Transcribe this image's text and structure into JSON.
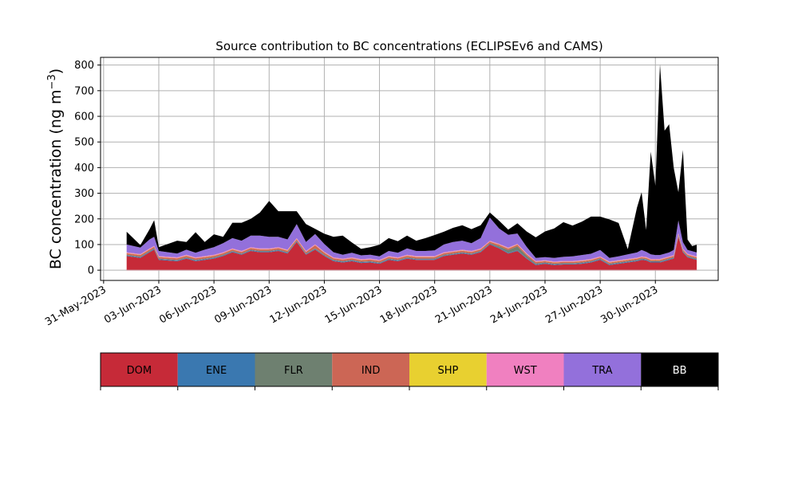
{
  "chart_data": {
    "type": "area",
    "stacked": true,
    "title": "Source contribution to BC concentrations (ECLIPSEv6 and CAMS)",
    "ylabel": "BC concentration (ng m",
    "ylabel_sup": "−3",
    "ylabel_close": ")",
    "xlabel": "",
    "ylim": [
      -40,
      830
    ],
    "yticks": [
      0,
      100,
      200,
      300,
      400,
      500,
      600,
      700,
      800
    ],
    "xlim": [
      "2023-05-30T20:00",
      "2023-07-03T10:00"
    ],
    "xticks": [
      "2023-05-31",
      "2023-06-03",
      "2023-06-06",
      "2023-06-09",
      "2023-06-12",
      "2023-06-15",
      "2023-06-18",
      "2023-06-21",
      "2023-06-24",
      "2023-06-27",
      "2023-06-30"
    ],
    "xtick_labels": [
      "31-May-2023",
      "03-Jun-2023",
      "06-Jun-2023",
      "09-Jun-2023",
      "12-Jun-2023",
      "15-Jun-2023",
      "18-Jun-2023",
      "21-Jun-2023",
      "24-Jun-2023",
      "27-Jun-2023",
      "30-Jun-2023"
    ],
    "grid": true,
    "x": [
      "2023-06-01T06:00",
      "2023-06-02T00:00",
      "2023-06-02T12:00",
      "2023-06-02T18:00",
      "2023-06-03T00:00",
      "2023-06-04T00:00",
      "2023-06-04T12:00",
      "2023-06-05T00:00",
      "2023-06-05T12:00",
      "2023-06-06T00:00",
      "2023-06-06T12:00",
      "2023-06-07T00:00",
      "2023-06-07T12:00",
      "2023-06-08T00:00",
      "2023-06-08T12:00",
      "2023-06-09T00:00",
      "2023-06-09T12:00",
      "2023-06-10T00:00",
      "2023-06-10T12:00",
      "2023-06-11T00:00",
      "2023-06-11T12:00",
      "2023-06-12T00:00",
      "2023-06-12T12:00",
      "2023-06-13T00:00",
      "2023-06-13T12:00",
      "2023-06-14T00:00",
      "2023-06-14T12:00",
      "2023-06-15T00:00",
      "2023-06-15T12:00",
      "2023-06-16T00:00",
      "2023-06-16T12:00",
      "2023-06-17T00:00",
      "2023-06-17T12:00",
      "2023-06-18T00:00",
      "2023-06-18T12:00",
      "2023-06-19T00:00",
      "2023-06-19T12:00",
      "2023-06-20T00:00",
      "2023-06-20T12:00",
      "2023-06-21T00:00",
      "2023-06-21T12:00",
      "2023-06-22T00:00",
      "2023-06-22T12:00",
      "2023-06-23T00:00",
      "2023-06-23T12:00",
      "2023-06-24T00:00",
      "2023-06-24T12:00",
      "2023-06-25T00:00",
      "2023-06-25T12:00",
      "2023-06-26T00:00",
      "2023-06-26T12:00",
      "2023-06-27T00:00",
      "2023-06-27T12:00",
      "2023-06-28T00:00",
      "2023-06-28T12:00",
      "2023-06-29T00:00",
      "2023-06-29T06:00",
      "2023-06-29T12:00",
      "2023-06-29T18:00",
      "2023-06-30T00:00",
      "2023-06-30T06:00",
      "2023-06-30T12:00",
      "2023-06-30T18:00",
      "2023-07-01T00:00",
      "2023-07-01T06:00",
      "2023-07-01T12:00",
      "2023-07-01T18:00",
      "2023-07-02T00:00",
      "2023-07-02T06:00"
    ],
    "series": [
      {
        "name": "DOM",
        "color": "#c62a38",
        "values": [
          55,
          48,
          70,
          80,
          40,
          35,
          45,
          35,
          40,
          45,
          55,
          70,
          60,
          75,
          70,
          70,
          75,
          65,
          110,
          60,
          80,
          55,
          35,
          30,
          35,
          28,
          30,
          25,
          40,
          35,
          45,
          40,
          40,
          40,
          55,
          60,
          65,
          60,
          70,
          100,
          85,
          65,
          75,
          45,
          20,
          25,
          20,
          22,
          22,
          25,
          30,
          40,
          20,
          25,
          30,
          35,
          40,
          38,
          30,
          30,
          30,
          35,
          40,
          45,
          130,
          70,
          50,
          45,
          40
        ]
      },
      {
        "name": "ENE",
        "color": "#3a78b0",
        "values": [
          3,
          3,
          3,
          3,
          3,
          3,
          3,
          3,
          3,
          3,
          3,
          3,
          3,
          3,
          3,
          3,
          3,
          3,
          3,
          3,
          3,
          3,
          3,
          3,
          3,
          3,
          3,
          3,
          3,
          3,
          3,
          3,
          3,
          3,
          3,
          3,
          3,
          3,
          3,
          3,
          3,
          3,
          3,
          3,
          3,
          3,
          3,
          3,
          3,
          3,
          3,
          3,
          3,
          3,
          3,
          3,
          3,
          3,
          3,
          3,
          3,
          3,
          3,
          3,
          3,
          3,
          3,
          3,
          3
        ]
      },
      {
        "name": "FLR",
        "color": "#6e8070",
        "values": [
          2,
          2,
          2,
          2,
          2,
          2,
          2,
          2,
          2,
          2,
          2,
          2,
          2,
          2,
          2,
          2,
          2,
          2,
          2,
          2,
          2,
          2,
          2,
          2,
          2,
          2,
          2,
          2,
          2,
          2,
          2,
          2,
          2,
          2,
          2,
          2,
          2,
          2,
          2,
          2,
          5,
          10,
          15,
          8,
          3,
          2,
          2,
          2,
          2,
          2,
          2,
          2,
          2,
          2,
          2,
          2,
          2,
          2,
          2,
          2,
          2,
          2,
          2,
          2,
          2,
          2,
          2,
          2,
          2
        ]
      },
      {
        "name": "IND",
        "color": "#cc6655",
        "values": [
          6,
          6,
          6,
          6,
          6,
          6,
          6,
          6,
          6,
          6,
          6,
          6,
          6,
          6,
          6,
          6,
          6,
          6,
          6,
          6,
          12,
          8,
          6,
          6,
          6,
          6,
          6,
          6,
          6,
          6,
          6,
          6,
          6,
          6,
          6,
          6,
          6,
          6,
          6,
          6,
          6,
          6,
          6,
          6,
          6,
          5,
          5,
          5,
          5,
          5,
          5,
          5,
          5,
          5,
          5,
          5,
          5,
          5,
          5,
          5,
          5,
          5,
          5,
          5,
          5,
          5,
          5,
          5,
          5
        ]
      },
      {
        "name": "SHP",
        "color": "#e8d030",
        "values": [
          1,
          1,
          1,
          1,
          1,
          1,
          1,
          1,
          1,
          1,
          1,
          1,
          1,
          1,
          1,
          1,
          1,
          1,
          1,
          1,
          1,
          1,
          1,
          1,
          1,
          1,
          1,
          1,
          1,
          1,
          1,
          1,
          1,
          1,
          1,
          1,
          1,
          1,
          1,
          1,
          1,
          1,
          1,
          1,
          1,
          1,
          1,
          1,
          1,
          1,
          1,
          1,
          1,
          1,
          1,
          1,
          1,
          1,
          1,
          1,
          1,
          1,
          1,
          1,
          1,
          1,
          1,
          1,
          1
        ]
      },
      {
        "name": "WST",
        "color": "#f080c0",
        "values": [
          3,
          3,
          3,
          3,
          3,
          3,
          3,
          3,
          3,
          3,
          3,
          3,
          3,
          3,
          3,
          3,
          3,
          3,
          3,
          3,
          3,
          3,
          3,
          3,
          3,
          3,
          3,
          3,
          3,
          3,
          3,
          3,
          3,
          3,
          3,
          3,
          3,
          3,
          3,
          3,
          3,
          3,
          3,
          3,
          3,
          3,
          3,
          3,
          3,
          3,
          3,
          3,
          3,
          3,
          3,
          3,
          3,
          3,
          3,
          3,
          3,
          3,
          3,
          3,
          3,
          3,
          3,
          3,
          3
        ]
      },
      {
        "name": "TRA",
        "color": "#9370db",
        "values": [
          30,
          25,
          35,
          35,
          20,
          15,
          20,
          18,
          25,
          30,
          35,
          40,
          40,
          45,
          50,
          45,
          40,
          40,
          55,
          35,
          40,
          30,
          20,
          15,
          18,
          15,
          15,
          14,
          20,
          18,
          25,
          20,
          20,
          22,
          30,
          35,
          35,
          30,
          40,
          90,
          60,
          50,
          40,
          25,
          12,
          12,
          14,
          16,
          18,
          20,
          20,
          25,
          14,
          15,
          18,
          20,
          25,
          20,
          18,
          15,
          15,
          15,
          15,
          20,
          50,
          25,
          15,
          15,
          15
        ]
      },
      {
        "name": "BB",
        "color": "#000000",
        "values": [
          50,
          10,
          40,
          65,
          15,
          50,
          30,
          80,
          30,
          50,
          25,
          60,
          70,
          65,
          90,
          140,
          100,
          110,
          50,
          70,
          20,
          40,
          60,
          75,
          40,
          25,
          30,
          45,
          50,
          45,
          50,
          40,
          50,
          60,
          50,
          55,
          60,
          55,
          50,
          20,
          30,
          20,
          40,
          60,
          80,
          100,
          115,
          135,
          120,
          130,
          145,
          130,
          150,
          130,
          20,
          175,
          225,
          85,
          400,
          270,
          744,
          480,
          500,
          320,
          110,
          360,
          40,
          20,
          30
        ]
      }
    ],
    "legend": {
      "placement": "below-plot",
      "entries": [
        {
          "name": "DOM",
          "color": "#c62a38",
          "text_color": "#000000"
        },
        {
          "name": "ENE",
          "color": "#3a78b0",
          "text_color": "#000000"
        },
        {
          "name": "FLR",
          "color": "#6e8070",
          "text_color": "#000000"
        },
        {
          "name": "IND",
          "color": "#cc6655",
          "text_color": "#000000"
        },
        {
          "name": "SHP",
          "color": "#e8d030",
          "text_color": "#000000"
        },
        {
          "name": "WST",
          "color": "#f080c0",
          "text_color": "#000000"
        },
        {
          "name": "TRA",
          "color": "#9370db",
          "text_color": "#000000"
        },
        {
          "name": "BB",
          "color": "#000000",
          "text_color": "#ffffff"
        }
      ]
    }
  }
}
